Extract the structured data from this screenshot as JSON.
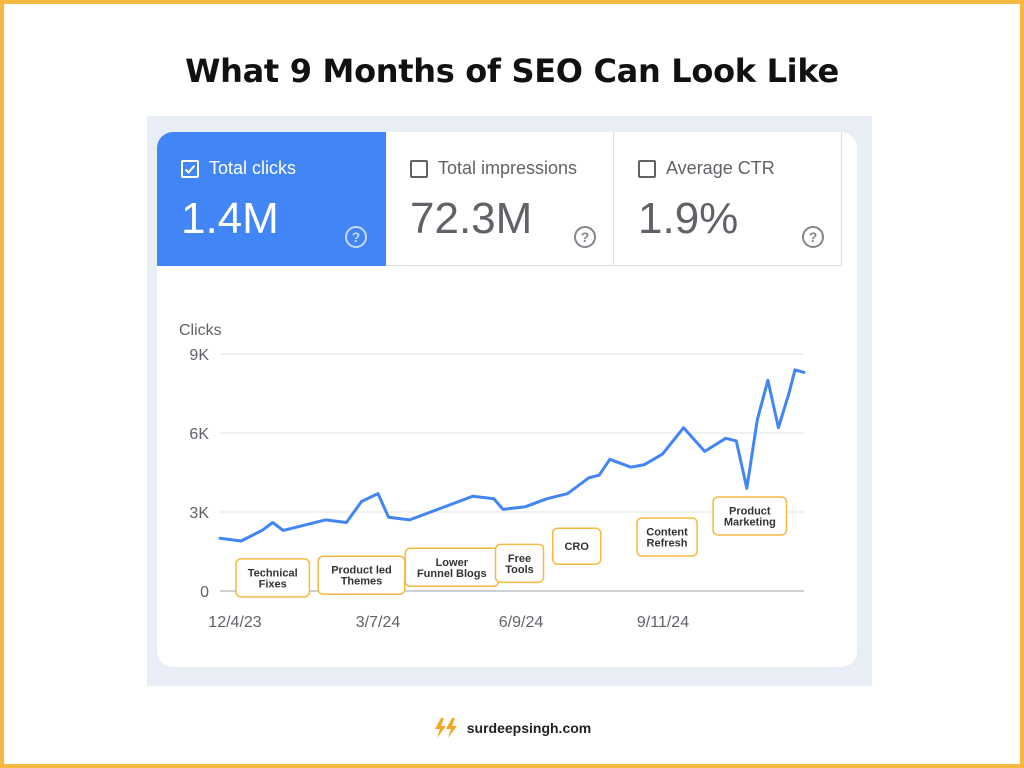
{
  "title": "What 9 Months of SEO Can Look Like",
  "metrics": [
    {
      "label": "Total clicks",
      "value": "1.4M",
      "checked": true
    },
    {
      "label": "Total impressions",
      "value": "72.3M",
      "checked": false
    },
    {
      "label": "Average CTR",
      "value": "1.9%",
      "checked": false
    }
  ],
  "footer": {
    "text": "surdeepsingh.com",
    "icon": "lightning-bolt-icon"
  },
  "colors": {
    "accent": "#4285f4",
    "border": "#f5b942",
    "annotation_border": "#f5b942",
    "line": "#4285f4"
  },
  "chart_data": {
    "type": "line",
    "ylabel": "Clicks",
    "ylim": [
      0,
      9000
    ],
    "yticks": [
      0,
      3000,
      6000,
      9000
    ],
    "ytick_labels": [
      "0",
      "3K",
      "6K",
      "9K"
    ],
    "xtick_labels": [
      "12/4/23",
      "3/7/24",
      "6/9/24",
      "9/11/24"
    ],
    "x_start": "2023-12-04",
    "x_end": "2024-12-26",
    "grid": true,
    "series": [
      {
        "x": [
          "2023-12-04",
          "2023-12-18",
          "2024-01-01",
          "2024-01-08",
          "2024-01-15",
          "2024-01-29",
          "2024-02-12",
          "2024-02-26",
          "2024-03-07",
          "2024-03-18",
          "2024-03-25",
          "2024-04-08",
          "2024-04-22",
          "2024-05-06",
          "2024-05-20",
          "2024-06-03",
          "2024-06-09",
          "2024-06-24",
          "2024-07-08",
          "2024-07-22",
          "2024-08-05",
          "2024-08-12",
          "2024-08-19",
          "2024-09-02",
          "2024-09-11",
          "2024-09-23",
          "2024-10-07",
          "2024-10-21",
          "2024-11-04",
          "2024-11-11",
          "2024-11-18",
          "2024-11-25",
          "2024-12-02",
          "2024-12-09",
          "2024-12-16",
          "2024-12-20",
          "2024-12-26"
        ],
        "y": [
          2000,
          1900,
          2300,
          2600,
          2300,
          2500,
          2700,
          2600,
          3400,
          3700,
          2800,
          2700,
          3000,
          3300,
          3600,
          3500,
          3100,
          3200,
          3500,
          3700,
          4300,
          4400,
          5000,
          4700,
          4800,
          5200,
          6200,
          5300,
          5800,
          5700,
          3900,
          6500,
          8000,
          6200,
          7500,
          8400,
          8300
        ]
      }
    ],
    "annotations": [
      {
        "x": "2024-01-08",
        "y": 500,
        "label": "Technical\nFixes"
      },
      {
        "x": "2024-03-07",
        "y": 600,
        "label": "Product led\nThemes"
      },
      {
        "x": "2024-05-06",
        "y": 900,
        "label": "Lower\nFunnel Blogs"
      },
      {
        "x": "2024-06-20",
        "y": 1050,
        "label": "Free\nTools"
      },
      {
        "x": "2024-07-28",
        "y": 1700,
        "label": "CRO"
      },
      {
        "x": "2024-09-26",
        "y": 2050,
        "label": "Content\nRefresh"
      },
      {
        "x": "2024-11-20",
        "y": 2850,
        "label": "Product\nMarketing"
      }
    ]
  }
}
